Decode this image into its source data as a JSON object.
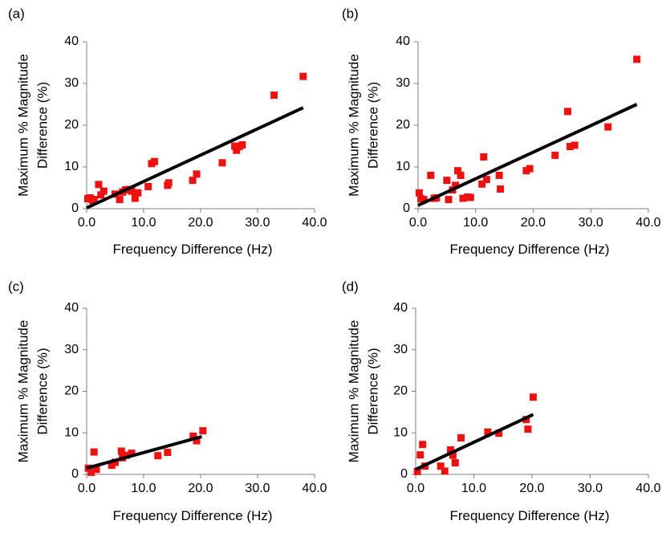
{
  "chart_data": [
    {
      "type": "scatter",
      "panel_label": "(a)",
      "xlabel": "Frequency Difference (Hz)",
      "ylabel": [
        "Maximum % Magnitude",
        "Difference (%)"
      ],
      "xlim": [
        0,
        40
      ],
      "ylim": [
        0,
        40
      ],
      "xticks": [
        "0.0",
        "10.0",
        "20.0",
        "30.0",
        "40.0"
      ],
      "yticks": [
        "0",
        "10",
        "20",
        "30",
        "40"
      ],
      "marker_color": "#ee1111",
      "trendline": {
        "x": [
          0.0,
          38.0
        ],
        "y": [
          0.2,
          24.2
        ],
        "color": "#000000"
      },
      "points": [
        [
          0.2,
          2.4
        ],
        [
          0.6,
          2.6
        ],
        [
          1.0,
          2.0
        ],
        [
          1.3,
          2.2
        ],
        [
          2.1,
          5.8
        ],
        [
          2.5,
          3.3
        ],
        [
          3.0,
          4.2
        ],
        [
          5.0,
          3.5
        ],
        [
          5.8,
          2.2
        ],
        [
          6.3,
          4.0
        ],
        [
          6.8,
          4.5
        ],
        [
          7.3,
          4.6
        ],
        [
          7.9,
          4.2
        ],
        [
          8.5,
          2.5
        ],
        [
          9.0,
          3.8
        ],
        [
          10.8,
          5.3
        ],
        [
          11.4,
          10.8
        ],
        [
          11.9,
          11.3
        ],
        [
          14.2,
          5.6
        ],
        [
          14.4,
          6.2
        ],
        [
          18.6,
          6.8
        ],
        [
          19.3,
          8.3
        ],
        [
          23.8,
          11.0
        ],
        [
          26.0,
          15.0
        ],
        [
          26.3,
          14.0
        ],
        [
          26.8,
          14.9
        ],
        [
          27.3,
          15.3
        ],
        [
          32.9,
          27.2
        ],
        [
          38.0,
          31.7
        ]
      ]
    },
    {
      "type": "scatter",
      "panel_label": "(b)",
      "xlabel": "Frequency Difference (Hz)",
      "ylabel": [
        "Maximum % Magnitude",
        "Difference (%)"
      ],
      "xlim": [
        0,
        40
      ],
      "ylim": [
        0,
        40
      ],
      "xticks": [
        "0.0",
        "10.0",
        "20.0",
        "30.0",
        "40.0"
      ],
      "yticks": [
        "0",
        "10",
        "20",
        "30",
        "40"
      ],
      "marker_color": "#ee1111",
      "trendline": {
        "x": [
          0.0,
          38.0
        ],
        "y": [
          0.8,
          25.0
        ],
        "color": "#000000"
      },
      "points": [
        [
          0.2,
          3.8
        ],
        [
          0.5,
          2.4
        ],
        [
          1.0,
          2.2
        ],
        [
          2.2,
          8.0
        ],
        [
          2.8,
          2.5
        ],
        [
          3.2,
          2.6
        ],
        [
          5.0,
          6.8
        ],
        [
          5.3,
          2.2
        ],
        [
          6.0,
          4.5
        ],
        [
          6.5,
          5.6
        ],
        [
          6.9,
          9.1
        ],
        [
          7.4,
          8.0
        ],
        [
          7.8,
          2.5
        ],
        [
          8.6,
          2.8
        ],
        [
          9.1,
          2.7
        ],
        [
          11.1,
          5.9
        ],
        [
          11.4,
          12.4
        ],
        [
          11.9,
          7.0
        ],
        [
          14.1,
          8.0
        ],
        [
          14.3,
          4.7
        ],
        [
          18.8,
          9.1
        ],
        [
          19.4,
          9.6
        ],
        [
          23.8,
          12.8
        ],
        [
          26.0,
          23.3
        ],
        [
          26.4,
          14.9
        ],
        [
          27.2,
          15.2
        ],
        [
          33.0,
          19.6
        ],
        [
          38.0,
          35.8
        ]
      ]
    },
    {
      "type": "scatter",
      "panel_label": "(c)",
      "xlabel": "Frequency Difference (Hz)",
      "ylabel": [
        "Maximum % Magnitude",
        "Difference (%)"
      ],
      "xlim": [
        0,
        40
      ],
      "ylim": [
        0,
        40
      ],
      "xticks": [
        "0.0",
        "10.0",
        "20.0",
        "30.0",
        "40.0"
      ],
      "yticks": [
        "0",
        "10",
        "20",
        "30",
        "40"
      ],
      "marker_color": "#ee1111",
      "trendline": {
        "x": [
          0.0,
          20.2
        ],
        "y": [
          1.5,
          9.1
        ],
        "color": "#000000"
      },
      "points": [
        [
          0.3,
          1.5
        ],
        [
          0.8,
          0.5
        ],
        [
          1.3,
          5.4
        ],
        [
          1.7,
          1.2
        ],
        [
          4.4,
          2.2
        ],
        [
          5.0,
          2.9
        ],
        [
          6.1,
          5.6
        ],
        [
          6.3,
          4.0
        ],
        [
          7.0,
          4.6
        ],
        [
          7.9,
          5.1
        ],
        [
          12.5,
          4.5
        ],
        [
          14.2,
          5.3
        ],
        [
          18.7,
          9.2
        ],
        [
          19.3,
          8.1
        ],
        [
          20.4,
          10.5
        ]
      ]
    },
    {
      "type": "scatter",
      "panel_label": "(d)",
      "xlabel": "Frequency Difference (Hz)",
      "ylabel": [
        "Maximum % Magnitude",
        "Difference (%)"
      ],
      "xlim": [
        0,
        40
      ],
      "ylim": [
        0,
        40
      ],
      "xticks": [
        "0.0",
        "10.0",
        "20.0",
        "30.0",
        "40.0"
      ],
      "yticks": [
        "0",
        "10",
        "20",
        "30",
        "40"
      ],
      "marker_color": "#ee1111",
      "trendline": {
        "x": [
          0.0,
          20.2
        ],
        "y": [
          1.2,
          14.4
        ],
        "color": "#000000"
      },
      "points": [
        [
          0.3,
          0.7
        ],
        [
          0.8,
          4.7
        ],
        [
          1.2,
          7.2
        ],
        [
          1.6,
          2.0
        ],
        [
          4.3,
          2.0
        ],
        [
          5.0,
          0.8
        ],
        [
          6.0,
          5.9
        ],
        [
          6.4,
          4.6
        ],
        [
          6.8,
          2.8
        ],
        [
          7.8,
          8.8
        ],
        [
          12.4,
          10.2
        ],
        [
          14.3,
          9.9
        ],
        [
          19.0,
          13.2
        ],
        [
          19.3,
          10.9
        ],
        [
          20.2,
          18.6
        ]
      ]
    }
  ]
}
